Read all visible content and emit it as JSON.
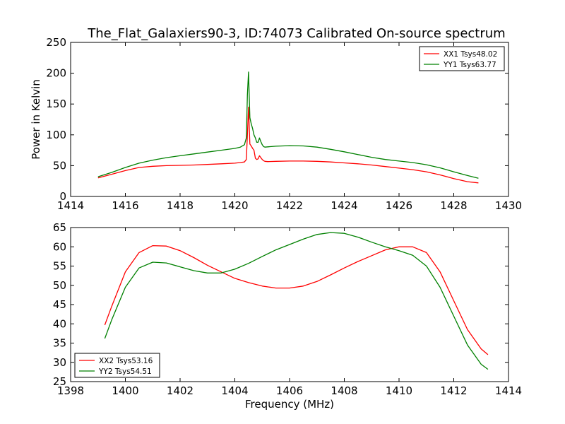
{
  "chart_data": [
    {
      "type": "line",
      "title": "The_Flat_Galaxiers90-3, ID:74073 Calibrated On-source spectrum",
      "xlabel": "",
      "ylabel": "Power in Kelvin",
      "xlim": [
        1414,
        1430
      ],
      "ylim": [
        0,
        250
      ],
      "xticks": [
        1414,
        1416,
        1418,
        1420,
        1422,
        1424,
        1426,
        1428,
        1430
      ],
      "yticks": [
        0,
        50,
        100,
        150,
        200,
        250
      ],
      "legend_position": "top-right",
      "series": [
        {
          "name": "XX1 Tsys48.02",
          "color": "#ff0000",
          "x": [
            1415.0,
            1415.5,
            1416.0,
            1416.5,
            1417.0,
            1417.5,
            1418.0,
            1418.5,
            1419.0,
            1419.5,
            1420.0,
            1420.2,
            1420.35,
            1420.42,
            1420.46,
            1420.5,
            1420.55,
            1420.6,
            1420.65,
            1420.7,
            1420.75,
            1420.8,
            1420.85,
            1420.9,
            1420.95,
            1421.0,
            1421.05,
            1421.1,
            1421.2,
            1421.5,
            1422.0,
            1422.5,
            1423.0,
            1423.5,
            1424.0,
            1424.5,
            1425.0,
            1425.5,
            1426.0,
            1426.5,
            1427.0,
            1427.5,
            1428.0,
            1428.5,
            1428.9
          ],
          "y": [
            30,
            36,
            42,
            47,
            49,
            50,
            50.5,
            51,
            52,
            53,
            54,
            55,
            56,
            60,
            100,
            145,
            85,
            82,
            78,
            75,
            62,
            60,
            61,
            66,
            63,
            60,
            58,
            57,
            56.5,
            57,
            57.5,
            57.5,
            57,
            56,
            54.5,
            53,
            51,
            48.5,
            46,
            43.5,
            40,
            35,
            29,
            24,
            22
          ]
        },
        {
          "name": "YY1 Tsys63.77",
          "color": "#008000",
          "x": [
            1415.0,
            1415.5,
            1416.0,
            1416.5,
            1417.0,
            1417.5,
            1418.0,
            1418.5,
            1419.0,
            1419.5,
            1420.0,
            1420.2,
            1420.35,
            1420.42,
            1420.46,
            1420.5,
            1420.55,
            1420.6,
            1420.65,
            1420.7,
            1420.75,
            1420.8,
            1420.85,
            1420.9,
            1420.95,
            1421.0,
            1421.05,
            1421.1,
            1421.2,
            1421.5,
            1422.0,
            1422.5,
            1423.0,
            1423.5,
            1424.0,
            1424.5,
            1425.0,
            1425.5,
            1426.0,
            1426.5,
            1427.0,
            1427.5,
            1428.0,
            1428.5,
            1428.9
          ],
          "y": [
            32,
            39,
            47,
            54,
            59,
            63,
            66,
            69,
            72,
            75,
            78,
            80,
            84,
            95,
            165,
            202,
            128,
            118,
            110,
            100,
            95,
            88,
            88,
            95,
            89,
            84,
            81,
            80,
            80.5,
            81.5,
            82.5,
            82,
            80,
            76.5,
            72.5,
            68,
            63.5,
            60,
            57.5,
            55,
            51.5,
            46.5,
            40,
            34,
            29.5
          ]
        }
      ]
    },
    {
      "type": "line",
      "title": "",
      "xlabel": "Frequency (MHz)",
      "ylabel": "",
      "xlim": [
        1398,
        1414
      ],
      "ylim": [
        25,
        65
      ],
      "xticks": [
        1398,
        1400,
        1402,
        1404,
        1406,
        1408,
        1410,
        1412,
        1414
      ],
      "yticks": [
        25,
        30,
        35,
        40,
        45,
        50,
        55,
        60,
        65
      ],
      "legend_position": "bottom-left",
      "series": [
        {
          "name": "XX2 Tsys53.16",
          "color": "#ff0000",
          "x": [
            1399.25,
            1399.5,
            1400.0,
            1400.5,
            1401.0,
            1401.5,
            1402.0,
            1402.5,
            1403.0,
            1403.5,
            1404.0,
            1404.5,
            1405.0,
            1405.5,
            1406.0,
            1406.5,
            1407.0,
            1407.5,
            1408.0,
            1408.5,
            1409.0,
            1409.5,
            1410.0,
            1410.5,
            1411.0,
            1411.5,
            1412.0,
            1412.5,
            1413.0,
            1413.25
          ],
          "y": [
            39.7,
            44.5,
            53.5,
            58.5,
            60.3,
            60.2,
            59,
            57.2,
            55.2,
            53.5,
            51.8,
            50.7,
            49.8,
            49.3,
            49.3,
            49.8,
            51,
            52.7,
            54.5,
            56.2,
            57.7,
            59.2,
            60,
            60,
            58.5,
            53.5,
            46,
            38.5,
            33.5,
            32
          ]
        },
        {
          "name": "YY2 Tsys54.51",
          "color": "#008000",
          "x": [
            1399.25,
            1399.5,
            1400.0,
            1400.5,
            1401.0,
            1401.5,
            1402.0,
            1402.5,
            1403.0,
            1403.5,
            1404.0,
            1404.5,
            1405.0,
            1405.5,
            1406.0,
            1406.5,
            1407.0,
            1407.5,
            1408.0,
            1408.5,
            1409.0,
            1409.5,
            1410.0,
            1410.5,
            1411.0,
            1411.5,
            1412.0,
            1412.5,
            1413.0,
            1413.25
          ],
          "y": [
            36.2,
            41,
            49.5,
            54.5,
            56,
            55.8,
            54.8,
            53.8,
            53.2,
            53.2,
            54.2,
            55.7,
            57.5,
            59.2,
            60.6,
            62,
            63.2,
            63.7,
            63.5,
            62.5,
            61.2,
            60,
            59,
            57.8,
            55,
            49.5,
            42,
            34.5,
            29.5,
            28.2
          ]
        }
      ]
    }
  ]
}
